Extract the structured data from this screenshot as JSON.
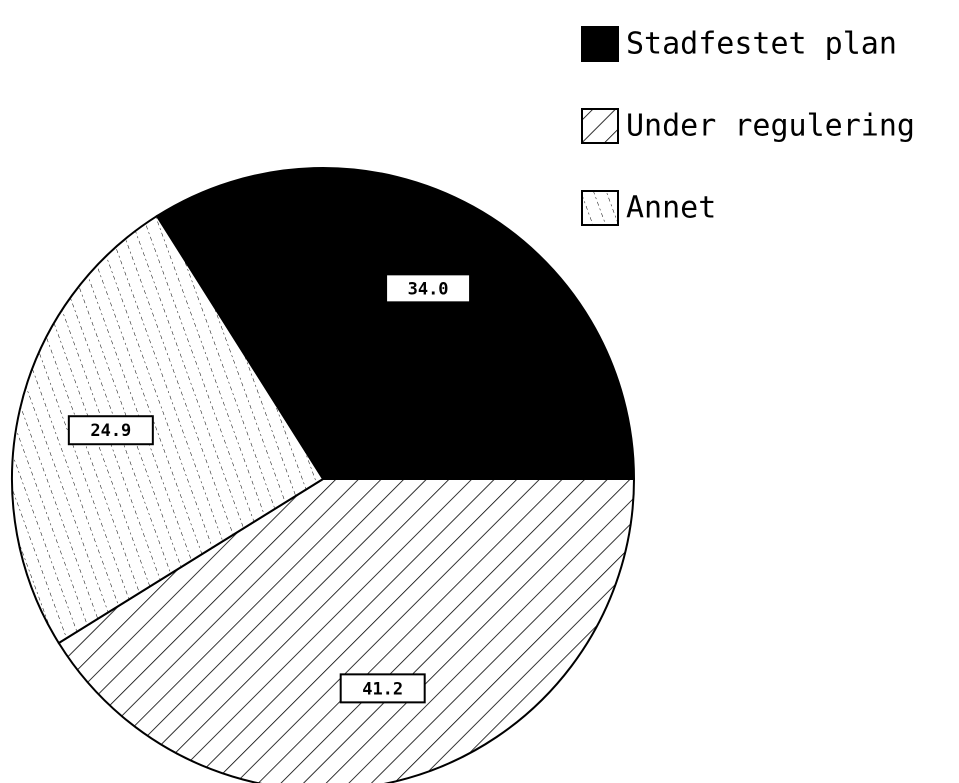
{
  "chart_data": {
    "type": "pie",
    "categories": [
      "Stadfestet plan",
      "Under regulering",
      "Annet"
    ],
    "values": [
      34.0,
      41.2,
      24.9
    ],
    "value_labels": [
      "34.0",
      "41.2",
      "24.9"
    ],
    "fills": [
      "solid",
      "diagonal-hatch",
      "dotted-hatch"
    ],
    "color": "#000000",
    "legend": "top-right"
  }
}
